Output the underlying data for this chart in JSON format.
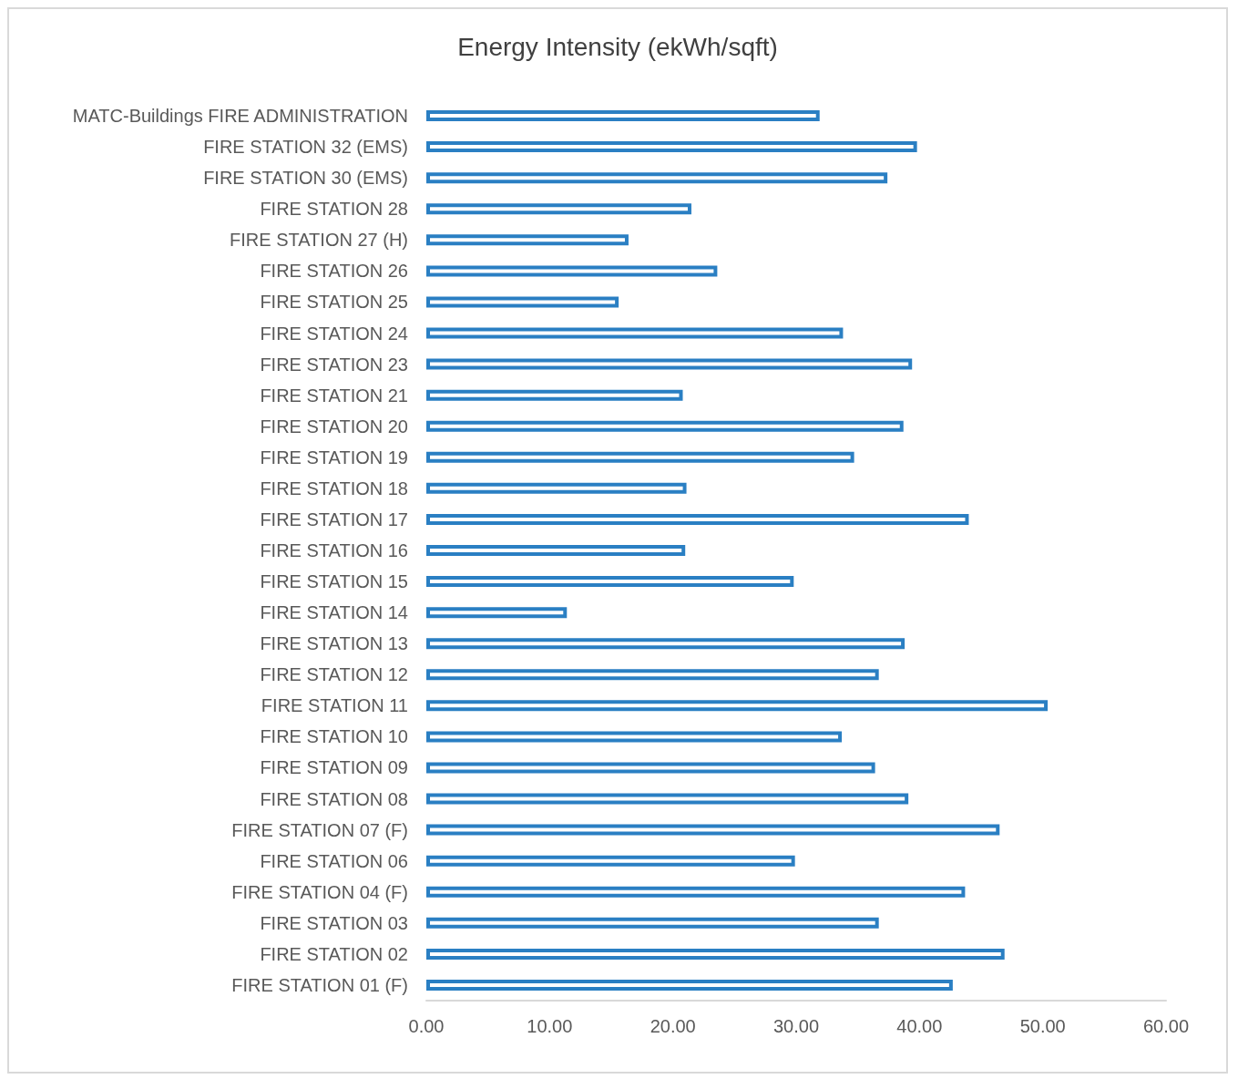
{
  "chart_data": {
    "type": "bar",
    "orientation": "horizontal",
    "title": "Energy Intensity (ekWh/sqft)",
    "categories": [
      "MATC-Buildings FIRE ADMINISTRATION",
      "FIRE STATION 32 (EMS)",
      "FIRE STATION 30 (EMS)",
      "FIRE STATION 28",
      "FIRE STATION 27 (H)",
      "FIRE STATION 26",
      "FIRE STATION 25",
      "FIRE STATION 24",
      "FIRE STATION 23",
      "FIRE STATION 21",
      "FIRE STATION 20",
      "FIRE STATION 19",
      "FIRE STATION 18",
      "FIRE STATION 17",
      "FIRE STATION 16",
      "FIRE STATION 15",
      "FIRE STATION 14",
      "FIRE STATION 13",
      "FIRE STATION 12",
      "FIRE STATION 11",
      "FIRE STATION 10",
      "FIRE STATION 09",
      "FIRE STATION 08",
      "FIRE STATION 07 (F)",
      "FIRE STATION 06",
      "FIRE STATION 04 (F)",
      "FIRE STATION 03",
      "FIRE STATION 02",
      "FIRE STATION 01 (F)"
    ],
    "values": [
      31.9,
      39.8,
      37.4,
      21.5,
      16.4,
      23.6,
      15.6,
      33.8,
      39.4,
      20.8,
      38.7,
      34.7,
      21.1,
      44.0,
      21.0,
      29.8,
      11.4,
      38.8,
      36.7,
      50.4,
      33.7,
      36.4,
      39.1,
      46.5,
      29.9,
      43.7,
      36.7,
      46.9,
      42.7
    ],
    "color": "#2a7fc3",
    "xlim": [
      0,
      60
    ],
    "xticks": [
      {
        "value": 0,
        "label": "0.00"
      },
      {
        "value": 10,
        "label": "10.00"
      },
      {
        "value": 20,
        "label": "20.00"
      },
      {
        "value": 30,
        "label": "30.00"
      },
      {
        "value": 40,
        "label": "40.00"
      },
      {
        "value": 50,
        "label": "50.00"
      },
      {
        "value": 60,
        "label": "60.00"
      }
    ],
    "grid": false
  }
}
